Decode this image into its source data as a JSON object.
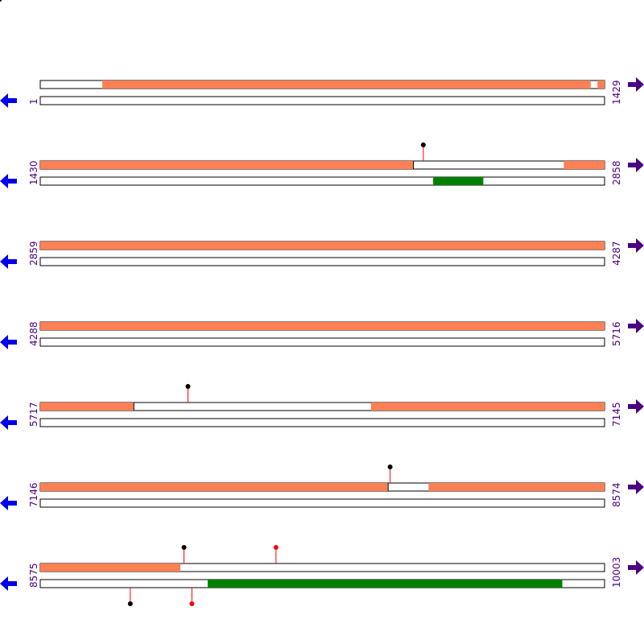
{
  "colors": {
    "feature_orange": "#ff8055",
    "feature_green": "#008000",
    "track_line": "#000000",
    "track_fill": "#ffffff",
    "left_arrow": "#0000ee",
    "right_arrow": "#4b0082",
    "coord_text": "#4b0082",
    "stem": "#ff0000",
    "marker_black": "#000000",
    "marker_red": "#ff0000"
  },
  "icons": {
    "left": "arrow-left-icon",
    "right": "arrow-right-icon"
  },
  "rows": [
    {
      "start": 1,
      "end": 1429,
      "start_label": "1",
      "end_label": "1429",
      "top": [
        {
          "from": 1,
          "to": 1429,
          "type": "box"
        },
        {
          "from": 158,
          "to": 1394,
          "type": "orange"
        },
        {
          "from": 1412,
          "to": 1429,
          "type": "orange"
        }
      ],
      "bottom": [],
      "markers_top": [],
      "markers_bottom": []
    },
    {
      "start": 1430,
      "end": 2858,
      "start_label": "1430",
      "end_label": "2858",
      "top": [
        {
          "from": 1430,
          "to": 2375,
          "type": "orange"
        },
        {
          "from": 2375,
          "to": 2756,
          "type": "box"
        },
        {
          "from": 2756,
          "to": 2858,
          "type": "orange"
        }
      ],
      "bottom": [
        {
          "from": 2425,
          "to": 2551,
          "type": "green"
        }
      ],
      "markers_top": [
        {
          "pos": 2400,
          "color": "black"
        }
      ],
      "markers_bottom": []
    },
    {
      "start": 2859,
      "end": 4287,
      "start_label": "2859",
      "end_label": "4287",
      "top": [
        {
          "from": 2859,
          "to": 4287,
          "type": "orange"
        }
      ],
      "bottom": [],
      "markers_top": [],
      "markers_bottom": []
    },
    {
      "start": 4288,
      "end": 5716,
      "start_label": "4288",
      "end_label": "5716",
      "top": [
        {
          "from": 4288,
          "to": 5716,
          "type": "orange"
        }
      ],
      "bottom": [],
      "markers_top": [],
      "markers_bottom": []
    },
    {
      "start": 5717,
      "end": 7145,
      "start_label": "5717",
      "end_label": "7145",
      "top": [
        {
          "from": 5717,
          "to": 5954,
          "type": "orange"
        },
        {
          "from": 5954,
          "to": 6555,
          "type": "box"
        },
        {
          "from": 6555,
          "to": 7145,
          "type": "orange"
        }
      ],
      "bottom": [],
      "markers_top": [
        {
          "pos": 6091,
          "color": "black"
        }
      ],
      "markers_bottom": []
    },
    {
      "start": 7146,
      "end": 8574,
      "start_label": "7146",
      "end_label": "8574",
      "top": [
        {
          "from": 7146,
          "to": 8027,
          "type": "orange"
        },
        {
          "from": 8027,
          "to": 8130,
          "type": "box"
        },
        {
          "from": 8130,
          "to": 8574,
          "type": "orange"
        }
      ],
      "bottom": [],
      "markers_top": [
        {
          "pos": 8032,
          "color": "black"
        }
      ],
      "markers_bottom": []
    },
    {
      "start": 8575,
      "end": 10003,
      "start_label": "8575",
      "end_label": "10003",
      "top": [
        {
          "from": 8575,
          "to": 10003,
          "type": "box"
        },
        {
          "from": 8575,
          "to": 8929,
          "type": "orange"
        }
      ],
      "bottom": [
        {
          "from": 8999,
          "to": 9896,
          "type": "green"
        }
      ],
      "markers_top": [
        {
          "pos": 8939,
          "color": "black"
        },
        {
          "pos": 9172,
          "color": "red"
        }
      ],
      "markers_bottom": [
        {
          "pos": 8803,
          "color": "black"
        },
        {
          "pos": 8959,
          "color": "red"
        }
      ]
    }
  ]
}
